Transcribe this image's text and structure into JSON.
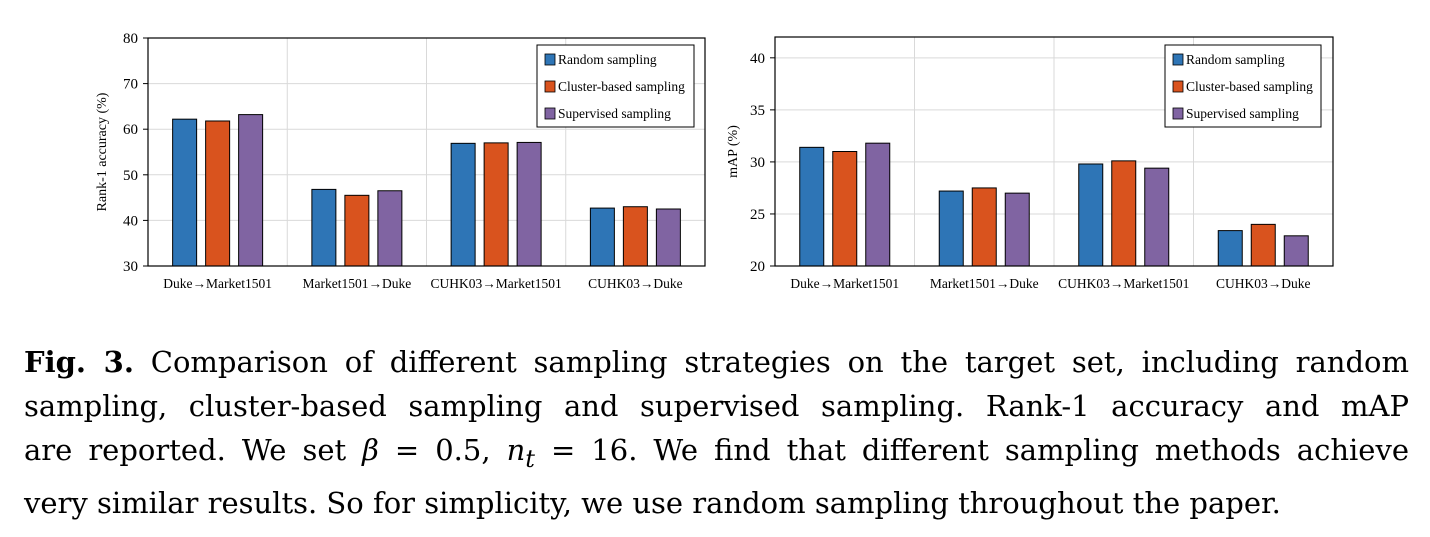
{
  "chart_data": [
    {
      "type": "bar",
      "categories": [
        "Duke→Market1501",
        "Market1501→Duke",
        "CUHK03→Market1501",
        "CUHK03→Duke"
      ],
      "series": [
        {
          "name": "Random sampling",
          "color": "#2e75b6",
          "values": [
            62.2,
            46.8,
            56.9,
            42.7
          ]
        },
        {
          "name": "Cluster-based sampling",
          "color": "#d9531e",
          "values": [
            61.8,
            45.5,
            57.0,
            43.0
          ]
        },
        {
          "name": "Supervised sampling",
          "color": "#8064a2",
          "values": [
            63.2,
            46.5,
            57.1,
            42.5
          ]
        }
      ],
      "ylabel": "Rank-1 accuracy (%)",
      "ylim": [
        30,
        80
      ],
      "yticks": [
        30,
        40,
        50,
        60,
        70,
        80
      ],
      "grid": true,
      "legend": "top-right"
    },
    {
      "type": "bar",
      "categories": [
        "Duke→Market1501",
        "Market1501→Duke",
        "CUHK03→Market1501",
        "CUHK03→Duke"
      ],
      "series": [
        {
          "name": "Random sampling",
          "color": "#2e75b6",
          "values": [
            31.4,
            27.2,
            29.8,
            23.4
          ]
        },
        {
          "name": "Cluster-based sampling",
          "color": "#d9531e",
          "values": [
            31.0,
            27.5,
            30.1,
            24.0
          ]
        },
        {
          "name": "Supervised sampling",
          "color": "#8064a2",
          "values": [
            31.8,
            27.0,
            29.4,
            22.9
          ]
        }
      ],
      "ylabel": "mAP (%)",
      "ylim": [
        20,
        42
      ],
      "yticks": [
        20,
        25,
        30,
        35,
        40
      ],
      "grid": true,
      "legend": "top-right"
    }
  ],
  "caption": {
    "label": "Fig. 3.",
    "line1": "Comparison of different sampling strategies on the target set, including random",
    "line2": "sampling, cluster-based sampling and supervised sampling. Rank-1 accuracy and mAP",
    "line3a": "are reported. We set ",
    "beta": "β",
    "beta_eq": " = 0.5, ",
    "n": "n",
    "t": "t",
    "n_eq": " = 16. We find that different sampling methods achieve",
    "line4": "very similar results. So for simplicity, we use random sampling throughout the paper."
  }
}
